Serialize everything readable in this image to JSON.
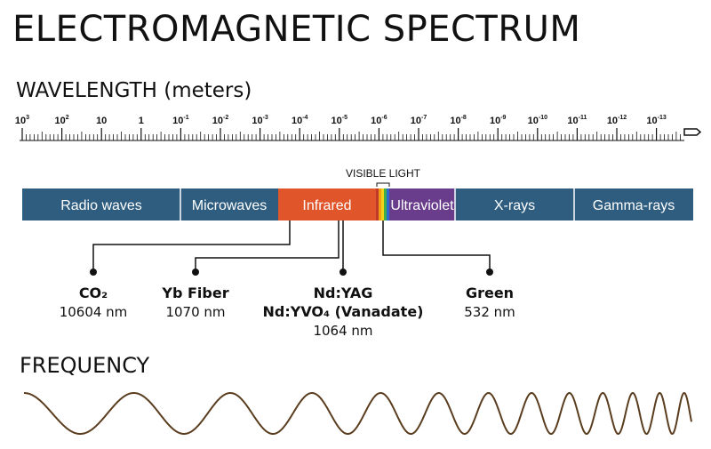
{
  "title": "ELECTROMAGNETIC SPECTRUM",
  "wavelength_axis": {
    "label": "WAVELENGTH (meters)",
    "ticks": [
      {
        "base": "10",
        "exp": "3"
      },
      {
        "base": "10",
        "exp": "2"
      },
      {
        "base": "10",
        "exp": ""
      },
      {
        "base": "1",
        "exp": ""
      },
      {
        "base": "10",
        "exp": "-1"
      },
      {
        "base": "10",
        "exp": "-2"
      },
      {
        "base": "10",
        "exp": "-3"
      },
      {
        "base": "10",
        "exp": "-4"
      },
      {
        "base": "10",
        "exp": "-5"
      },
      {
        "base": "10",
        "exp": "-6"
      },
      {
        "base": "10",
        "exp": "-7"
      },
      {
        "base": "10",
        "exp": "-8"
      },
      {
        "base": "10",
        "exp": "-9"
      },
      {
        "base": "10",
        "exp": "-10"
      },
      {
        "base": "10",
        "exp": "-11"
      },
      {
        "base": "10",
        "exp": "-12"
      },
      {
        "base": "10",
        "exp": "-13"
      }
    ]
  },
  "visible_light_label": "VISIBLE LIGHT",
  "bands": [
    {
      "label": "Radio waves",
      "color": "#2e5d80"
    },
    {
      "label": "Microwaves",
      "color": "#2e5d80"
    },
    {
      "label": "Infrared",
      "color": "#e0562a"
    },
    {
      "label": "",
      "color": "visible"
    },
    {
      "label": "Ultraviolet",
      "color": "#6a3d8c"
    },
    {
      "label": "X-rays",
      "color": "#2e5d80"
    },
    {
      "label": "Gamma-rays",
      "color": "#2e5d80"
    }
  ],
  "lasers": [
    {
      "name": "CO₂",
      "value": "10604 nm"
    },
    {
      "name": "Yb Fiber",
      "value": "1070 nm"
    },
    {
      "name": "Nd:YAG",
      "name2": "Nd:YVO₄ (Vanadate)",
      "value": "1064 nm"
    },
    {
      "name": "Green",
      "value": "532 nm"
    }
  ],
  "frequency_label": "FREQUENCY",
  "colors": {
    "wave": "#5a3d1e",
    "band_blue": "#2e5d80",
    "infrared": "#e0562a",
    "ultraviolet": "#6a3d8c",
    "text": "#111111"
  }
}
